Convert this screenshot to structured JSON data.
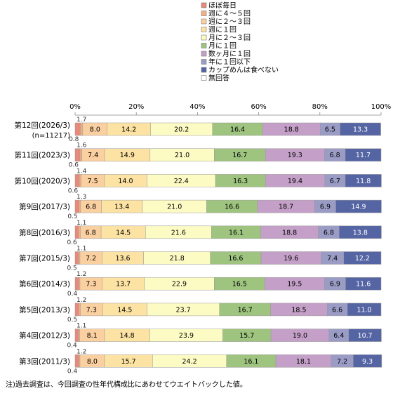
{
  "chart_data": {
    "type": "bar",
    "orientation": "horizontal",
    "stacked": true,
    "xlim": [
      0,
      100
    ],
    "x_ticks": [
      "0%",
      "20%",
      "40%",
      "60%",
      "80%",
      "100%"
    ],
    "grid": false,
    "legend_position": "top-right",
    "categories": [
      {
        "label": "第12回(2026/3)",
        "sublabel": "(n=11217)"
      },
      {
        "label": "第11回(2023/3)"
      },
      {
        "label": "第10回(2020/3)"
      },
      {
        "label": "第9回(2017/3)"
      },
      {
        "label": "第8回(2016/3)"
      },
      {
        "label": "第7回(2015/3)"
      },
      {
        "label": "第6回(2014/3)"
      },
      {
        "label": "第5回(2013/3)"
      },
      {
        "label": "第4回(2012/3)"
      },
      {
        "label": "第3回(2011/3)"
      }
    ],
    "series": [
      {
        "name": "ほぼ毎日",
        "color": "#e8897a",
        "values": [
          1.7,
          1.6,
          1.4,
          1.3,
          1.1,
          1.1,
          1.2,
          1.2,
          1.1,
          1.2
        ]
      },
      {
        "name": "週に４～５回",
        "color": "#f3b086",
        "values": [
          0.8,
          0.6,
          0.6,
          0.5,
          0.6,
          0.5,
          0.4,
          0.5,
          0.4,
          0.4
        ]
      },
      {
        "name": "週に２～３回",
        "color": "#fbd0a0",
        "values": [
          8.0,
          7.4,
          7.5,
          6.8,
          6.8,
          7.2,
          7.3,
          7.3,
          8.1,
          8.0
        ]
      },
      {
        "name": "週に１回",
        "color": "#fde3a3",
        "values": [
          14.2,
          14.9,
          14.0,
          13.4,
          14.5,
          13.6,
          13.7,
          14.5,
          14.8,
          15.7
        ]
      },
      {
        "name": "月に２～３回",
        "color": "#fdfbc4",
        "values": [
          20.2,
          21.0,
          22.4,
          21.0,
          21.6,
          21.8,
          22.9,
          23.7,
          23.9,
          24.2
        ]
      },
      {
        "name": "月に１回",
        "color": "#9ec47f",
        "values": [
          16.4,
          16.7,
          16.3,
          16.6,
          16.1,
          16.6,
          16.5,
          16.7,
          15.7,
          16.1
        ]
      },
      {
        "name": "数ヶ月に１回",
        "color": "#c4a0c8",
        "values": [
          18.8,
          19.3,
          19.4,
          18.7,
          18.8,
          19.6,
          19.5,
          18.5,
          19.0,
          18.1
        ]
      },
      {
        "name": "年に１回以下",
        "color": "#9a9cc6",
        "values": [
          6.5,
          6.8,
          6.7,
          6.9,
          6.8,
          7.4,
          6.9,
          6.6,
          6.4,
          7.2
        ]
      },
      {
        "name": "カップめんは食べない",
        "color": "#5565a4",
        "values": [
          13.3,
          11.7,
          11.8,
          14.9,
          13.8,
          12.2,
          11.6,
          11.0,
          10.7,
          9.3
        ]
      },
      {
        "name": "無回答",
        "color": "#ffffff",
        "values": [
          0,
          0,
          0,
          0,
          0,
          0,
          0,
          0,
          0,
          0
        ]
      }
    ],
    "note": "注)過去調査は、今回調査の性年代構成比にあわせてウエイトバックした値。"
  }
}
